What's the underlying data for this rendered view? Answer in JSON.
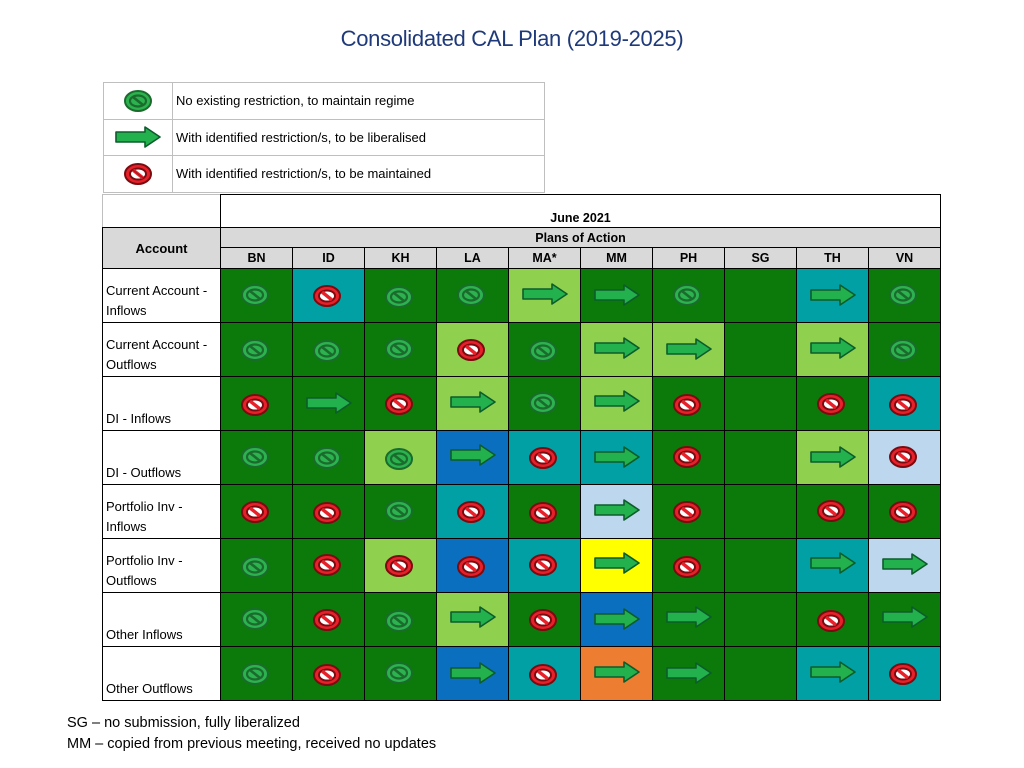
{
  "title": "Consolidated CAL Plan (2019-2025)",
  "legend": [
    {
      "icon": "green-circle-icon",
      "text": "No existing restriction, to maintain regime"
    },
    {
      "icon": "green-arrow-icon",
      "text": "With identified restriction/s, to be liberalised"
    },
    {
      "icon": "red-circle-icon",
      "text": "With identified restriction/s, to be maintained"
    }
  ],
  "table": {
    "date": "June 2021",
    "plans_label": "Plans of Action",
    "account_label": "Account",
    "countries": [
      "BN",
      "ID",
      "KH",
      "LA",
      "MA*",
      "MM",
      "PH",
      "SG",
      "TH",
      "VN"
    ],
    "colors": {
      "G": "#0b7a0b",
      "T": "#00a0a4",
      "L": "#8fd14f",
      "B": "#0b6fc0",
      "P": "#bdd7ee",
      "Y": "#ffff00",
      "O": "#ed7d31"
    },
    "icon_colors": {
      "green_fill": "#2cb24f",
      "green_stroke": "#1a6b2c",
      "red_fill": "#e8202a",
      "red_stroke": "#7a0b10",
      "arrow_fill": "#23b14d",
      "arrow_stroke": "#0d5c2b"
    },
    "rows": [
      {
        "label": "Current Account - Inflows",
        "cells": [
          [
            "G",
            "g"
          ],
          [
            "T",
            "r"
          ],
          [
            "G",
            "g"
          ],
          [
            "G",
            "g"
          ],
          [
            "L",
            "a"
          ],
          [
            "G",
            "a"
          ],
          [
            "G",
            "g"
          ],
          [
            "G",
            ""
          ],
          [
            "T",
            "a"
          ],
          [
            "G",
            "g"
          ]
        ]
      },
      {
        "label": "Current Account - Outflows",
        "cells": [
          [
            "G",
            "g"
          ],
          [
            "G",
            "g"
          ],
          [
            "G",
            "g"
          ],
          [
            "L",
            "r"
          ],
          [
            "G",
            "g"
          ],
          [
            "L",
            "a"
          ],
          [
            "L",
            "a"
          ],
          [
            "G",
            ""
          ],
          [
            "L",
            "a"
          ],
          [
            "G",
            "g"
          ]
        ]
      },
      {
        "label": "DI - Inflows",
        "cells": [
          [
            "G",
            "r"
          ],
          [
            "G",
            "a"
          ],
          [
            "G",
            "r"
          ],
          [
            "L",
            "a"
          ],
          [
            "G",
            "g"
          ],
          [
            "L",
            "a"
          ],
          [
            "G",
            "r"
          ],
          [
            "G",
            ""
          ],
          [
            "G",
            "r"
          ],
          [
            "T",
            "r"
          ]
        ]
      },
      {
        "label": "DI - Outflows",
        "cells": [
          [
            "G",
            "g"
          ],
          [
            "G",
            "g"
          ],
          [
            "L",
            "g"
          ],
          [
            "B",
            "a"
          ],
          [
            "T",
            "r"
          ],
          [
            "T",
            "a"
          ],
          [
            "G",
            "r"
          ],
          [
            "G",
            ""
          ],
          [
            "L",
            "a"
          ],
          [
            "P",
            "r"
          ]
        ]
      },
      {
        "label": "Portfolio Inv - Inflows",
        "cells": [
          [
            "G",
            "r"
          ],
          [
            "G",
            "r"
          ],
          [
            "G",
            "g"
          ],
          [
            "T",
            "r"
          ],
          [
            "G",
            "r"
          ],
          [
            "P",
            "a"
          ],
          [
            "G",
            "r"
          ],
          [
            "G",
            ""
          ],
          [
            "G",
            "r"
          ],
          [
            "G",
            "r"
          ]
        ]
      },
      {
        "label": "Portfolio Inv - Outflows",
        "cells": [
          [
            "G",
            "g"
          ],
          [
            "G",
            "r"
          ],
          [
            "L",
            "r"
          ],
          [
            "B",
            "r"
          ],
          [
            "T",
            "r"
          ],
          [
            "Y",
            "a"
          ],
          [
            "G",
            "r"
          ],
          [
            "G",
            ""
          ],
          [
            "T",
            "a"
          ],
          [
            "P",
            "a"
          ]
        ]
      },
      {
        "label": "Other Inflows",
        "cells": [
          [
            "G",
            "g"
          ],
          [
            "G",
            "r"
          ],
          [
            "G",
            "g"
          ],
          [
            "L",
            "a"
          ],
          [
            "G",
            "r"
          ],
          [
            "B",
            "a"
          ],
          [
            "G",
            "a"
          ],
          [
            "G",
            ""
          ],
          [
            "G",
            "r"
          ],
          [
            "G",
            "a"
          ]
        ]
      },
      {
        "label": "Other Outflows",
        "cells": [
          [
            "G",
            "g"
          ],
          [
            "G",
            "r"
          ],
          [
            "G",
            "g"
          ],
          [
            "B",
            "a"
          ],
          [
            "T",
            "r"
          ],
          [
            "O",
            "a"
          ],
          [
            "G",
            "a"
          ],
          [
            "G",
            ""
          ],
          [
            "T",
            "a"
          ],
          [
            "T",
            "r"
          ]
        ]
      }
    ]
  },
  "notes": [
    "SG – no submission, fully liberalized",
    "MM – copied from previous meeting, received no updates"
  ]
}
